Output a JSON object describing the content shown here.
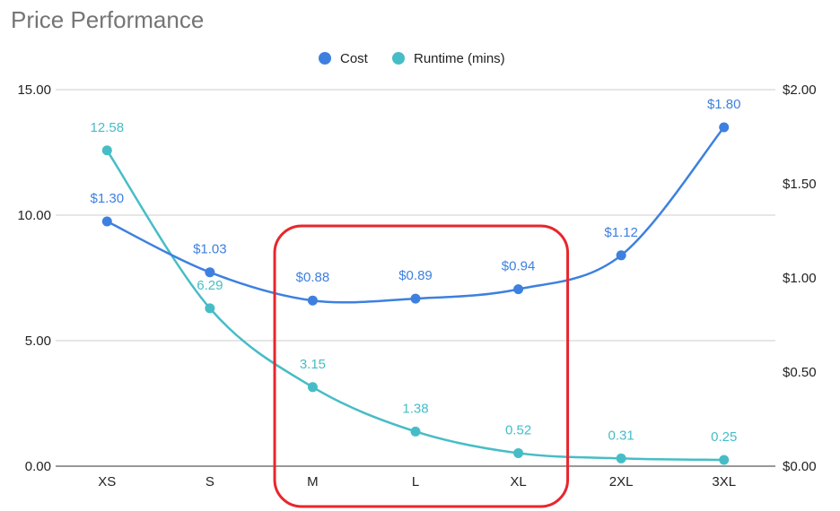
{
  "chart_data": {
    "type": "line",
    "title": "Price Performance",
    "categories": [
      "XS",
      "S",
      "M",
      "L",
      "XL",
      "2XL",
      "3XL"
    ],
    "legend_position": "top",
    "grid": true,
    "y_left": {
      "ylim": [
        0,
        15
      ],
      "ticks": [
        0,
        5,
        10,
        15
      ],
      "tick_labels": [
        "0.00",
        "5.00",
        "10.00",
        "15.00"
      ]
    },
    "y_right": {
      "ylim": [
        0,
        2
      ],
      "ticks": [
        0,
        0.5,
        1,
        1.5,
        2
      ],
      "tick_labels": [
        "$0.00",
        "$0.50",
        "$1.00",
        "$1.50",
        "$2.00"
      ]
    },
    "series": [
      {
        "name": "Cost",
        "axis": "right",
        "color": "#3d80e0",
        "values": [
          1.3,
          1.03,
          0.88,
          0.89,
          0.94,
          1.12,
          1.8
        ],
        "labels": [
          "$1.30",
          "$1.03",
          "$0.88",
          "$0.89",
          "$0.94",
          "$1.12",
          "$1.80"
        ]
      },
      {
        "name": "Runtime (mins)",
        "axis": "left",
        "color": "#46bdc6",
        "values": [
          12.58,
          6.29,
          3.15,
          1.38,
          0.52,
          0.31,
          0.25
        ],
        "labels": [
          "12.58",
          "6.29",
          "3.15",
          "1.38",
          "0.52",
          "0.31",
          "0.25"
        ]
      }
    ],
    "highlight": {
      "shape": "rounded-rectangle",
      "color": "#e8262b",
      "categories": [
        "M",
        "L",
        "XL"
      ]
    }
  }
}
